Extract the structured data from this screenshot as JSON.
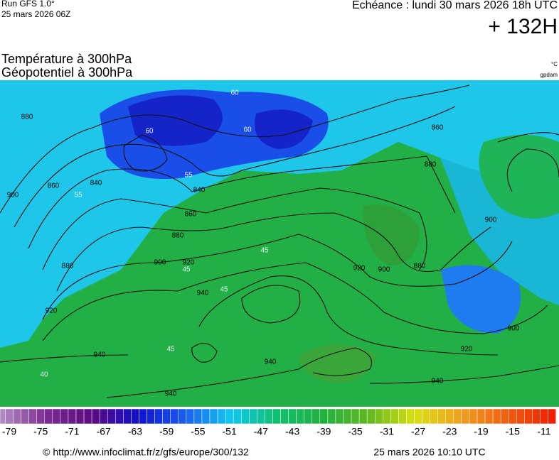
{
  "header": {
    "run": "Run GFS 1.0°",
    "run_date": "25 mars 2026 06Z",
    "valid": "Echéance : lundi 30 mars 2026 18h UTC",
    "lead": "+ 132H",
    "title_temp": "Température à 300hPa",
    "title_geo": "Géopotentiel à 300hPa",
    "unit_temp": "°C",
    "unit_geo": "gpdam"
  },
  "map": {
    "geopotential_labels": [
      "880",
      "860",
      "900",
      "840",
      "840",
      "860",
      "880",
      "900",
      "920",
      "880",
      "920",
      "940",
      "940",
      "940",
      "940",
      "940",
      "920",
      "900",
      "900",
      "880",
      "920",
      "860",
      "880",
      "900"
    ],
    "temperature_labels": [
      "60",
      "60",
      "60",
      "55",
      "55",
      "45",
      "45",
      "45",
      "45",
      "40"
    ]
  },
  "colorbar": {
    "ticks": [
      -79,
      -75,
      -71,
      -67,
      -63,
      -59,
      -55,
      -51,
      -47,
      -43,
      -39,
      -35,
      -31,
      -27,
      -23,
      -19,
      -15,
      -11
    ],
    "colors": [
      "#b08ac0",
      "#7a2a90",
      "#5a0a80",
      "#1010d0",
      "#1a5ef0",
      "#10c8f0",
      "#10c070",
      "#20b040",
      "#60b820",
      "#d8e010",
      "#f0a020",
      "#f06010",
      "#f02000"
    ]
  },
  "footer": {
    "source": "© http://www.infoclimat.fr/z/gfs/europe/300/132",
    "generated": "25 mars 2026 10:10 UTC"
  }
}
